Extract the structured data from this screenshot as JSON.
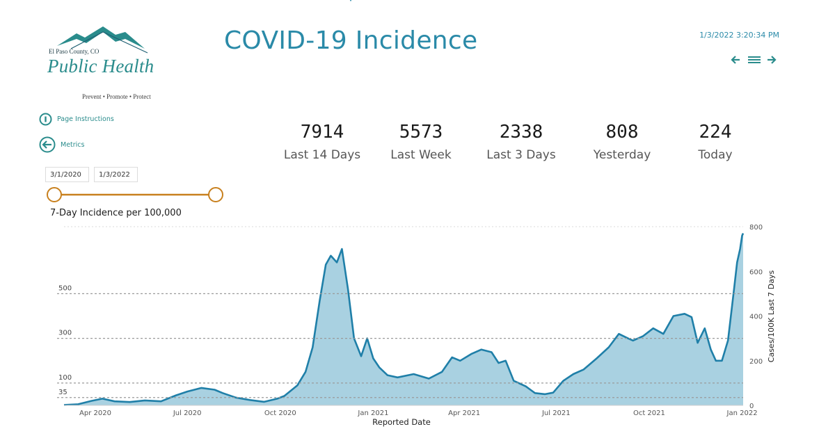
{
  "header": {
    "title": "COVID-19 Incidence",
    "timestamp": "1/3/2022 3:20:34 PM"
  },
  "logo": {
    "county": "El Paso County, CO",
    "wordmark": "Public Health",
    "tagline": "Prevent • Promote • Protect"
  },
  "nav": {
    "back_icon": "arrow-left-icon",
    "menu_icon": "list-menu-icon",
    "forward_icon": "arrow-right-icon"
  },
  "links": {
    "instructions": "Page Instructions",
    "metrics": "Metrics"
  },
  "filters": {
    "start_date": "3/1/2020",
    "end_date": "1/3/2022"
  },
  "kpis": [
    {
      "value": "7914",
      "label": "Last 14 Days"
    },
    {
      "value": "5573",
      "label": "Last Week"
    },
    {
      "value": "2338",
      "label": "Last 3 Days"
    },
    {
      "value": "808",
      "label": "Yesterday"
    },
    {
      "value": "224",
      "label": "Today"
    }
  ],
  "colors": {
    "accent": "#2a8aa8",
    "teal": "#2a8c8c",
    "line": "#1f7fa8",
    "area": "#a9d1e1",
    "slider": "#c8801e"
  },
  "chart_data": {
    "type": "area",
    "title": "7-Day Incidence per 100,000",
    "xlabel": "Reported Date",
    "ylabel": "Cases/100K Last 7 Days",
    "ylim": [
      0,
      800
    ],
    "x_tick_labels": [
      "Apr 2020",
      "Jul 2020",
      "Oct 2020",
      "Jan 2021",
      "Apr 2021",
      "Jul 2021",
      "Oct 2021",
      "Jan 2022"
    ],
    "y_tick_labels": [
      "0",
      "200",
      "400",
      "600",
      "800"
    ],
    "reference_lines": [
      {
        "label": "35",
        "value": 35
      },
      {
        "label": "100",
        "value": 100
      },
      {
        "label": "300",
        "value": 300
      },
      {
        "label": "500",
        "value": 500
      }
    ],
    "series": [
      {
        "name": "Cases/100K Last 7 Days",
        "x": [
          "2020-03-01",
          "2020-03-15",
          "2020-03-28",
          "2020-04-08",
          "2020-04-20",
          "2020-05-05",
          "2020-05-20",
          "2020-06-05",
          "2020-06-20",
          "2020-07-01",
          "2020-07-15",
          "2020-07-28",
          "2020-08-05",
          "2020-08-18",
          "2020-09-01",
          "2020-09-15",
          "2020-09-28",
          "2020-10-05",
          "2020-10-18",
          "2020-10-26",
          "2020-11-02",
          "2020-11-09",
          "2020-11-15",
          "2020-11-20",
          "2020-11-26",
          "2020-12-01",
          "2020-12-07",
          "2020-12-13",
          "2020-12-20",
          "2020-12-26",
          "2021-01-01",
          "2021-01-07",
          "2021-01-15",
          "2021-01-25",
          "2021-02-10",
          "2021-02-25",
          "2021-03-10",
          "2021-03-20",
          "2021-03-28",
          "2021-04-08",
          "2021-04-18",
          "2021-04-28",
          "2021-05-05",
          "2021-05-12",
          "2021-05-20",
          "2021-06-01",
          "2021-06-10",
          "2021-06-20",
          "2021-06-28",
          "2021-07-08",
          "2021-07-18",
          "2021-07-28",
          "2021-08-10",
          "2021-08-22",
          "2021-09-01",
          "2021-09-10",
          "2021-09-15",
          "2021-09-25",
          "2021-10-05",
          "2021-10-15",
          "2021-10-25",
          "2021-11-05",
          "2021-11-12",
          "2021-11-18",
          "2021-11-25",
          "2021-12-01",
          "2021-12-06",
          "2021-12-12",
          "2021-12-18",
          "2021-12-24",
          "2021-12-27",
          "2021-12-30",
          "2022-01-01",
          "2022-01-02"
        ],
        "values": [
          2,
          5,
          20,
          30,
          18,
          15,
          22,
          18,
          45,
          62,
          78,
          70,
          55,
          35,
          24,
          16,
          30,
          42,
          90,
          150,
          260,
          470,
          630,
          670,
          640,
          700,
          520,
          300,
          220,
          300,
          210,
          170,
          135,
          125,
          140,
          120,
          150,
          215,
          200,
          230,
          250,
          238,
          190,
          200,
          110,
          85,
          55,
          50,
          57,
          110,
          140,
          160,
          210,
          260,
          320,
          300,
          290,
          310,
          345,
          320,
          400,
          410,
          395,
          280,
          345,
          250,
          200,
          200,
          290,
          520,
          640,
          700,
          760,
          770
        ]
      }
    ]
  }
}
